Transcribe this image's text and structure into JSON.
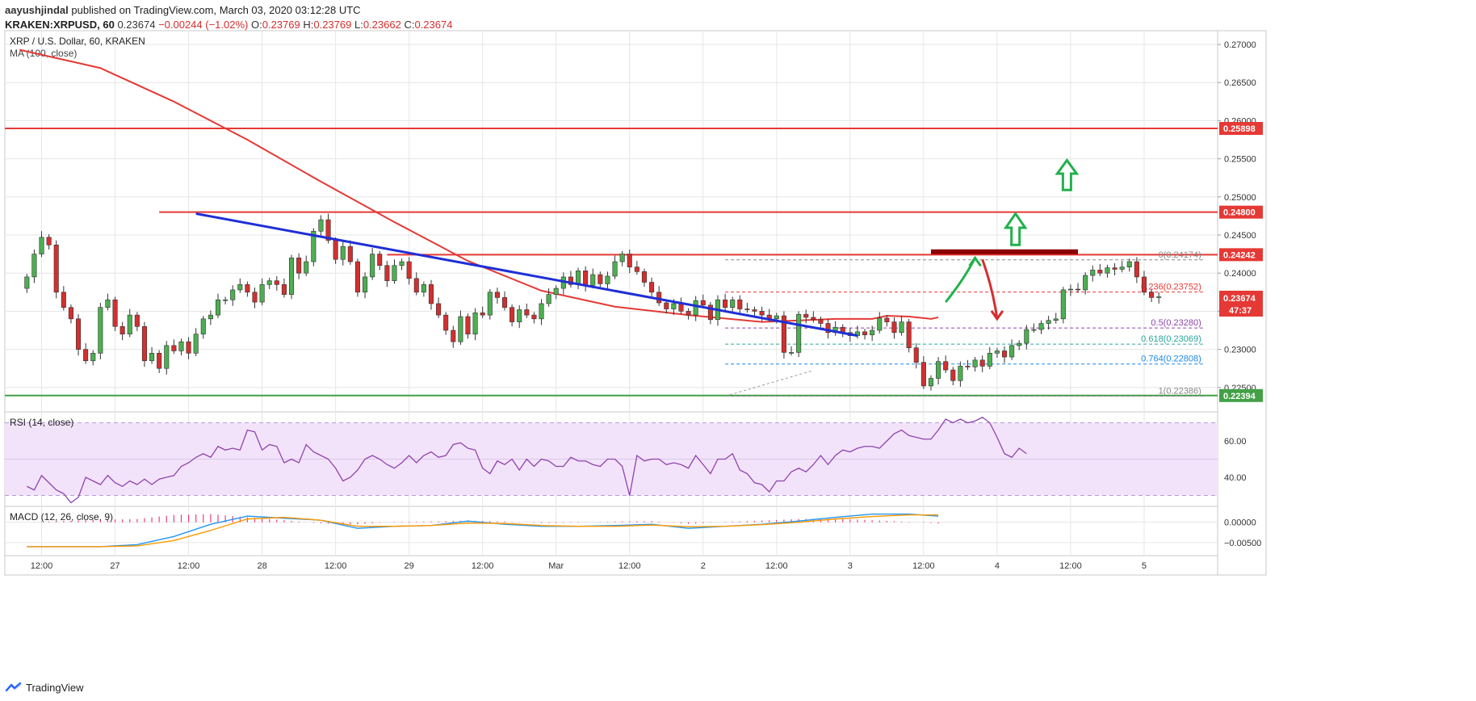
{
  "header": {
    "published_by": "aayushjindal",
    "published_text": "published on TradingView.com, March 03, 2020 03:12:28 UTC",
    "symbol": "KRAKEN:XRPUSD, 60",
    "last": "0.23674",
    "change": "−0.00244 (−1.02%)",
    "o_label": "O:",
    "o": "0.23769",
    "h_label": "H:",
    "h": "0.23769",
    "l_label": "L:",
    "l": "0.23662",
    "c_label": "C:",
    "c": "0.23674"
  },
  "footer": {
    "brand": "TradingView"
  },
  "colors": {
    "up": "#4caf50",
    "down": "#d32f2f",
    "ma": "#e53935",
    "trend": "#1e2fd6",
    "resist": "#e53935",
    "support": "#43a047",
    "rsi": "#8e44ad",
    "rsi_band": "#f3e3fa",
    "macd": "#2196f3",
    "signal": "#ff9800",
    "hist": "#e91e63",
    "pricebox": "#e53935"
  },
  "chart_data": [
    {
      "type": "candlestick",
      "title": "XRP / U.S. Dollar, 60, KRAKEN",
      "indicator_label": "MA (100, close)",
      "ylim": [
        0.2218,
        0.2718
      ],
      "x_range": [
        -3,
        162
      ],
      "x_tick_labels": [
        "12:00",
        "27",
        "12:00",
        "28",
        "12:00",
        "29",
        "12:00",
        "Mar",
        "12:00",
        "2",
        "12:00",
        "3",
        "12:00",
        "4",
        "12:00",
        "5"
      ],
      "x_tick_index": [
        2,
        12,
        22,
        32,
        42,
        52,
        62,
        72,
        82,
        92,
        102,
        112,
        122,
        132,
        142,
        152
      ],
      "y_ticks": [
        0.225,
        0.23,
        0.235,
        0.24,
        0.245,
        0.25,
        0.255,
        0.26,
        0.265,
        0.27
      ],
      "y_tick_labels": [
        "0.22500",
        "0.23000",
        "0.23500",
        "0.24000",
        "0.24500",
        "0.25000",
        "0.25500",
        "0.26000",
        "0.26500",
        "0.27000"
      ],
      "closes": [
        0.2395,
        0.2425,
        0.2447,
        0.2437,
        0.2375,
        0.2355,
        0.234,
        0.23,
        0.2285,
        0.2295,
        0.2355,
        0.2365,
        0.233,
        0.232,
        0.2345,
        0.233,
        0.2285,
        0.2295,
        0.2275,
        0.2305,
        0.2298,
        0.231,
        0.2295,
        0.232,
        0.234,
        0.2345,
        0.2365,
        0.2365,
        0.2378,
        0.2385,
        0.2375,
        0.2362,
        0.2385,
        0.239,
        0.2385,
        0.2372,
        0.242,
        0.24,
        0.2415,
        0.2455,
        0.247,
        0.2443,
        0.2418,
        0.2435,
        0.2415,
        0.2375,
        0.2395,
        0.2425,
        0.241,
        0.239,
        0.241,
        0.2415,
        0.2393,
        0.2375,
        0.2385,
        0.236,
        0.2345,
        0.2325,
        0.231,
        0.2343,
        0.232,
        0.2348,
        0.2345,
        0.2375,
        0.2368,
        0.2355,
        0.2336,
        0.2352,
        0.2345,
        0.234,
        0.236,
        0.2372,
        0.238,
        0.2395,
        0.2385,
        0.2403,
        0.2384,
        0.2398,
        0.2386,
        0.2396,
        0.2415,
        0.2425,
        0.2408,
        0.2402,
        0.2388,
        0.2375,
        0.2361,
        0.2353,
        0.236,
        0.235,
        0.2345,
        0.2364,
        0.2358,
        0.2339,
        0.2365,
        0.2355,
        0.2365,
        0.2353,
        0.2352,
        0.235,
        0.2345,
        0.234,
        0.2344,
        0.2296,
        0.2296,
        0.2346,
        0.2342,
        0.2339,
        0.2334,
        0.2322,
        0.2329,
        0.2322,
        0.2318,
        0.2323,
        0.2319,
        0.2325,
        0.2341,
        0.2336,
        0.2322,
        0.2336,
        0.2302,
        0.2283,
        0.2252,
        0.2262,
        0.2284,
        0.2273,
        0.2259,
        0.2278,
        0.2277,
        0.2286,
        0.2278,
        0.2295,
        0.2298,
        0.229,
        0.2305,
        0.2308,
        0.2326,
        0.2326,
        0.2334,
        0.2338,
        0.234,
        0.2378,
        0.2379,
        0.2378,
        0.2397,
        0.2404,
        0.24,
        0.2407,
        0.2405,
        0.2408,
        0.2415,
        0.2395,
        0.2375,
        0.2368,
        0.2369
      ],
      "ma_label": "MA (100, close)",
      "ma": [
        [
          -1,
          0.2693
        ],
        [
          10,
          0.2669
        ],
        [
          20,
          0.2625
        ],
        [
          30,
          0.2575
        ],
        [
          40,
          0.252
        ],
        [
          50,
          0.2467
        ],
        [
          60,
          0.2416
        ],
        [
          70,
          0.2377
        ],
        [
          80,
          0.2356
        ],
        [
          90,
          0.2345
        ],
        [
          100,
          0.2336
        ],
        [
          110,
          0.234
        ],
        [
          115,
          0.234
        ],
        [
          117,
          0.2344
        ],
        [
          120,
          0.2343
        ],
        [
          123,
          0.234
        ],
        [
          124,
          0.2342
        ]
      ],
      "trendline": [
        [
          23,
          0.2478
        ],
        [
          113,
          0.2318
        ]
      ],
      "horizontal_levels": [
        {
          "price": 0.25898,
          "label": "0.25898",
          "color": "#e53935",
          "box": true,
          "x_from": -3
        },
        {
          "price": 0.248,
          "label": "0.24800",
          "color": "#e53935",
          "box": true,
          "x_from": 18
        },
        {
          "price": 0.24242,
          "label": "0.24242",
          "color": "#e53935",
          "box": true,
          "x_from": 49
        },
        {
          "price": 0.22394,
          "label": "0.22394",
          "color": "#43a047",
          "box": true,
          "x_from": -3
        }
      ],
      "resistance_zone": {
        "x0": 123,
        "x1": 143,
        "price": 0.2428
      },
      "last_price": {
        "price": 0.23674,
        "label": "0.23674",
        "countdown": "47:37"
      },
      "fibonacci": {
        "x0": 95,
        "x1": 160,
        "low": 0.22386,
        "high": 0.24174,
        "levels": [
          {
            "ratio": "0",
            "price": 0.24174,
            "label": "0(0.24174)",
            "color": "#888888"
          },
          {
            "ratio": "0.236",
            "price": 0.23752,
            "label": "0.236(0.23752)",
            "color": "#e53935"
          },
          {
            "ratio": "0.5",
            "price": 0.2328,
            "label": "0.5(0.23280)",
            "color": "#8e44ad"
          },
          {
            "ratio": "0.618",
            "price": 0.23069,
            "label": "0.618(0.23069)",
            "color": "#26a69a"
          },
          {
            "ratio": "0.764",
            "price": 0.22808,
            "label": "0.764(0.22808)",
            "color": "#1e88e5"
          },
          {
            "ratio": "1",
            "price": 0.22386,
            "label": "1(0.22386)",
            "color": "#888888"
          }
        ]
      },
      "arrows": [
        {
          "kind": "curve-up",
          "color": "#22b14c",
          "x0": 125,
          "y0": 0.2362,
          "x1": 129,
          "y1": 0.242
        },
        {
          "kind": "curve-down",
          "color": "#d32f2f",
          "x0": 130,
          "y0": 0.2418,
          "x1": 132,
          "y1": 0.234
        },
        {
          "kind": "block-up",
          "color": "#22b14c",
          "x": 134.5,
          "base": 0.2437,
          "top": 0.2478
        },
        {
          "kind": "block-up",
          "color": "#22b14c",
          "x": 141.5,
          "base": 0.2509,
          "top": 0.2548
        }
      ]
    },
    {
      "type": "line",
      "title": "RSI (14, close)",
      "ylim": [
        24,
        76
      ],
      "y_ticks": [
        40,
        60
      ],
      "y_tick_labels": [
        "40.00",
        "60.00"
      ],
      "band": [
        30,
        70
      ],
      "values": [
        35,
        33,
        41,
        37,
        33,
        31,
        26,
        29,
        40,
        38,
        36,
        41,
        37,
        35,
        38,
        36,
        39,
        36,
        39,
        40,
        41,
        46,
        48,
        51,
        53,
        51,
        57,
        55,
        56,
        55,
        66,
        65,
        55,
        58,
        57,
        48,
        50,
        48,
        58,
        54,
        52,
        50,
        45,
        38,
        40,
        44,
        50,
        52,
        50,
        47,
        45,
        48,
        52,
        48,
        52,
        54,
        51,
        52,
        58,
        59,
        56,
        55,
        45,
        42,
        49,
        47,
        50,
        44,
        50,
        46,
        50,
        49,
        46,
        46,
        51,
        49,
        49,
        47,
        46,
        50,
        50,
        46,
        30,
        52,
        49,
        50,
        50,
        47,
        48,
        47,
        45,
        52,
        47,
        42,
        50,
        50,
        53,
        44,
        42,
        37,
        36,
        32,
        38,
        38,
        43,
        45,
        43,
        47,
        52,
        47,
        52,
        55,
        54,
        56,
        57,
        57,
        56,
        60,
        64,
        66,
        63,
        62,
        61,
        61,
        66,
        72,
        70,
        72,
        70,
        71,
        73,
        70,
        62,
        53,
        51,
        56,
        53
      ]
    },
    {
      "type": "line",
      "title": "MACD (12, 26, close, 9)",
      "ylim": [
        -0.0082,
        0.0039
      ],
      "y_ticks": [
        0,
        -0.005
      ],
      "y_tick_labels": [
        "0.00000",
        "−0.00500"
      ],
      "macd": [
        [
          0,
          -0.006
        ],
        [
          5,
          -0.006
        ],
        [
          10,
          -0.006
        ],
        [
          15,
          -0.0055
        ],
        [
          20,
          -0.0035
        ],
        [
          25,
          -0.0005
        ],
        [
          30,
          0.0015
        ],
        [
          35,
          0.001
        ],
        [
          40,
          0.0005
        ],
        [
          45,
          -0.0015
        ],
        [
          50,
          -0.001
        ],
        [
          55,
          -0.0008
        ],
        [
          60,
          0.0003
        ],
        [
          65,
          -0.0005
        ],
        [
          70,
          -0.001
        ],
        [
          75,
          -0.001
        ],
        [
          80,
          -0.0008
        ],
        [
          85,
          -0.0005
        ],
        [
          90,
          -0.0015
        ],
        [
          95,
          -0.001
        ],
        [
          100,
          -0.0005
        ],
        [
          105,
          0.0003
        ],
        [
          110,
          0.0012
        ],
        [
          115,
          0.002
        ],
        [
          120,
          0.002
        ],
        [
          124,
          0.0015
        ]
      ],
      "signal": [
        [
          0,
          -0.006
        ],
        [
          5,
          -0.006
        ],
        [
          10,
          -0.006
        ],
        [
          15,
          -0.0058
        ],
        [
          20,
          -0.0045
        ],
        [
          25,
          -0.002
        ],
        [
          30,
          0.0008
        ],
        [
          35,
          0.0012
        ],
        [
          40,
          0.0005
        ],
        [
          45,
          -0.001
        ],
        [
          50,
          -0.001
        ],
        [
          55,
          -0.0008
        ],
        [
          60,
          -0.0002
        ],
        [
          65,
          -0.0003
        ],
        [
          70,
          -0.0008
        ],
        [
          75,
          -0.001
        ],
        [
          80,
          -0.001
        ],
        [
          85,
          -0.0007
        ],
        [
          90,
          -0.0011
        ],
        [
          95,
          -0.001
        ],
        [
          100,
          -0.0006
        ],
        [
          105,
          0.0
        ],
        [
          110,
          0.0008
        ],
        [
          115,
          0.0014
        ],
        [
          120,
          0.0018
        ],
        [
          124,
          0.0018
        ]
      ],
      "histogram": [
        [
          0,
          0.0
        ],
        [
          5,
          0.0003
        ],
        [
          10,
          0.0006
        ],
        [
          15,
          0.0008
        ],
        [
          20,
          0.0018
        ],
        [
          25,
          0.002
        ],
        [
          30,
          0.0012
        ],
        [
          35,
          0.0005
        ],
        [
          40,
          -0.0003
        ],
        [
          45,
          -0.0005
        ],
        [
          50,
          0.0001
        ],
        [
          55,
          0.0002
        ],
        [
          60,
          0.0004
        ],
        [
          65,
          0.0002
        ],
        [
          70,
          -0.0002
        ],
        [
          75,
          -0.0001
        ],
        [
          80,
          0.0002
        ],
        [
          85,
          0.0003
        ],
        [
          90,
          -0.0004
        ],
        [
          95,
          0.0001
        ],
        [
          100,
          0.0004
        ],
        [
          105,
          0.0008
        ],
        [
          110,
          0.0009
        ],
        [
          115,
          0.0005
        ],
        [
          120,
          0.0001
        ],
        [
          124,
          -0.0003
        ]
      ]
    }
  ]
}
